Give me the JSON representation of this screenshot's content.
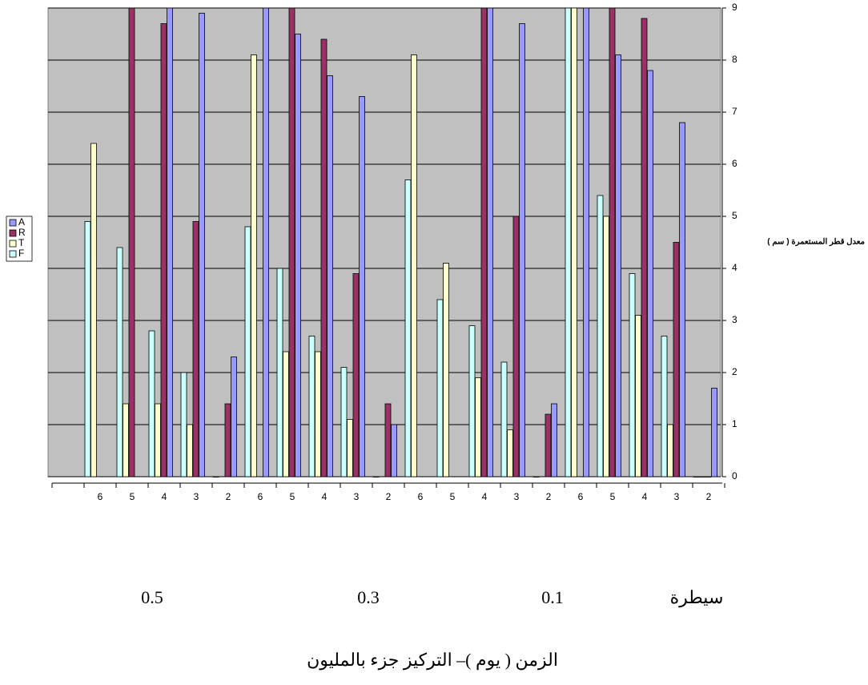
{
  "chart_data": {
    "type": "bar",
    "y_label": "معدل قطر المستعمرة ( سم )",
    "x_label": "الزمن ( يوم )– التركيز جزء بالمليون",
    "x_reversed": true,
    "categories": [
      "2",
      "3",
      "4",
      "5",
      "6",
      "2",
      "3",
      "4",
      "5",
      "6",
      "2",
      "3",
      "4",
      "5",
      "6",
      "2",
      "3",
      "4",
      "5",
      "6",
      null
    ],
    "groups": [
      "سيطرة",
      "0.1",
      "0.3",
      "0.5"
    ],
    "series": [
      {
        "name": "A",
        "color": "#9999ff",
        "values": [
          1.7,
          6.8,
          7.8,
          8.1,
          9.0,
          1.4,
          8.7,
          9.0,
          null,
          null,
          1.0,
          7.3,
          7.7,
          8.5,
          9.0,
          2.3,
          8.9,
          9.0,
          null,
          null,
          null
        ]
      },
      {
        "name": "R",
        "color": "#993366",
        "values": [
          0,
          4.5,
          8.8,
          9.0,
          null,
          1.2,
          5.0,
          9.0,
          null,
          null,
          1.4,
          3.9,
          8.4,
          9.0,
          null,
          1.4,
          4.9,
          8.7,
          9.0,
          null,
          null
        ]
      },
      {
        "name": "T",
        "color": "#ffffcc",
        "values": [
          0,
          1.0,
          3.1,
          5.0,
          9.0,
          null,
          0.9,
          1.9,
          4.1,
          8.1,
          null,
          1.1,
          2.4,
          2.4,
          8.1,
          null,
          1.0,
          1.4,
          1.4,
          6.4,
          null
        ]
      },
      {
        "name": "F",
        "color": "#ccffff",
        "values": [
          0,
          2.7,
          3.9,
          5.4,
          9.0,
          0,
          2.2,
          2.9,
          3.4,
          5.7,
          0,
          2.1,
          2.7,
          4.0,
          4.8,
          0,
          2.0,
          2.8,
          4.4,
          4.9,
          null
        ]
      }
    ],
    "ylim": [
      0,
      9
    ],
    "yticks": [
      0,
      1,
      2,
      3,
      4,
      5,
      6,
      7,
      8,
      9
    ],
    "grid": true,
    "legend": "left",
    "plot_background": "#c0c0c0"
  }
}
